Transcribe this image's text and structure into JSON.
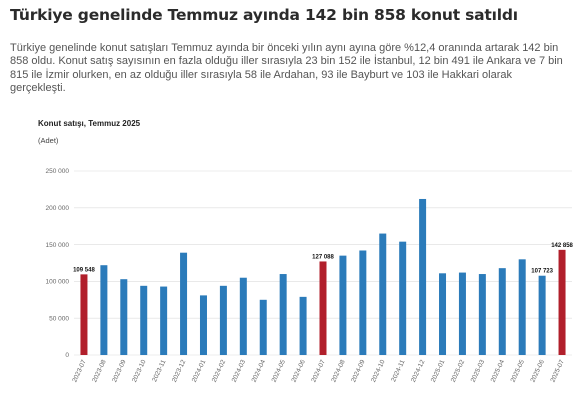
{
  "headline": "Türkiye genelinde Temmuz ayında 142 bin 858 konut satıldı",
  "summary": "Türkiye genelinde konut satışları Temmuz ayında bir önceki yılın aynı ayına göre %12,4 oranında artarak 142 bin 858 oldu. Konut satış sayısının en fazla olduğu iller sırasıyla 23 bin 152 ile İstanbul, 12 bin 491 ile Ankara ve 7 bin 815 ile İzmir olurken, en az olduğu iller sırasıyla 58 ile Ardahan, 93 ile Bayburt ve 103 ile Hakkari olarak gerçekleşti.",
  "colors": {
    "normal": "#2b7bba",
    "highlight": "#b11f2b"
  },
  "chart_data": {
    "type": "bar",
    "title": "Konut satışı, Temmuz 2025",
    "unit_label": "(Adet)",
    "xlabel": "",
    "ylabel": "",
    "ylim": [
      0,
      250000
    ],
    "yticks": [
      0,
      50000,
      100000,
      150000,
      200000,
      250000
    ],
    "ytick_labels": [
      "0",
      "50 000",
      "100 000",
      "150 000",
      "200 000",
      "250 000"
    ],
    "grid": true,
    "categories": [
      "2023-07",
      "2023-08",
      "2023-09",
      "2023-10",
      "2023-11",
      "2023-12",
      "2024-01",
      "2024-02",
      "2024-03",
      "2024-04",
      "2024-05",
      "2024-06",
      "2024-07",
      "2024-08",
      "2024-09",
      "2024-10",
      "2024-11",
      "2024-12",
      "2025-01",
      "2025-02",
      "2025-03",
      "2025-04",
      "2025-05",
      "2025-06",
      "2025-07"
    ],
    "values": [
      109548,
      122000,
      103000,
      94000,
      93000,
      139000,
      81000,
      94000,
      105000,
      75000,
      110000,
      79000,
      127088,
      135000,
      142000,
      165000,
      154000,
      212000,
      111000,
      112000,
      110000,
      118000,
      130000,
      107723,
      142858
    ],
    "highlighted": [
      "2023-07",
      "2024-07",
      "2025-07"
    ],
    "data_labels": [
      {
        "category": "2023-07",
        "text": "109 548"
      },
      {
        "category": "2024-07",
        "text": "127 088"
      },
      {
        "category": "2025-06",
        "text": "107 723"
      },
      {
        "category": "2025-07",
        "text": "142 858"
      }
    ]
  }
}
